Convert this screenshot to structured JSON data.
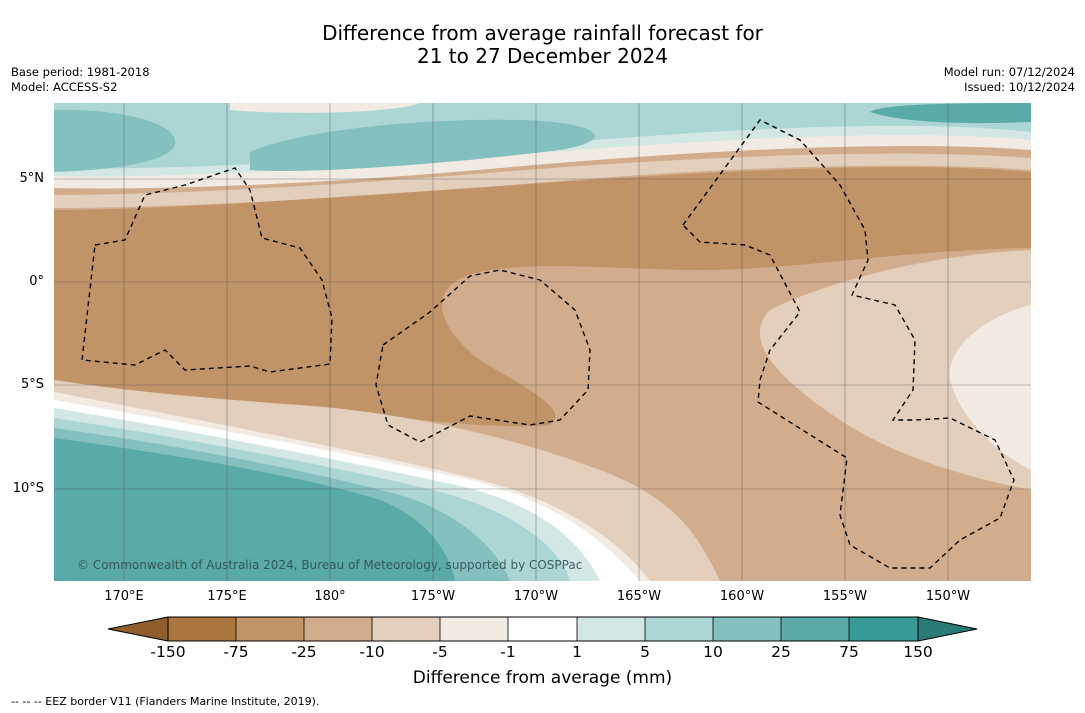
{
  "title": {
    "line1": "Difference from average rainfall forecast for",
    "line2": "21 to 27 December 2024"
  },
  "meta_left": {
    "base_period": "Base period: 1981-2018",
    "model": "Model: ACCESS-S2"
  },
  "meta_right": {
    "model_run": "Model run: 07/12/2024",
    "issued": "Issued: 10/12/2024"
  },
  "latitude_labels": [
    "5°N",
    "0°",
    "5°S",
    "10°S"
  ],
  "longitude_labels": [
    "170°E",
    "175°E",
    "180°",
    "175°W",
    "170°W",
    "165°W",
    "160°W",
    "155°W",
    "150°W"
  ],
  "copyright": "© Commonwealth of Australia 2024, Bureau of Meteorology, supported by COSPPac",
  "colorbar": {
    "ticks": [
      "-150",
      "-75",
      "-25",
      "-10",
      "-5",
      "-1",
      "1",
      "5",
      "10",
      "25",
      "75",
      "150"
    ],
    "colors": {
      "lt_-150": "#8f5e2c",
      "-150_-75": "#ab763e",
      "-75_-25": "#c19468",
      "-25_-10": "#d2ad8d",
      "-10_-5": "#e3cfbc",
      "-5_-1": "#f1ebe4",
      "-1_1": "#ffffff",
      "1_5": "#d3e7e5",
      "5_10": "#acd6d3",
      "10_25": "#83c0be",
      "25_75": "#5aaaa9",
      "75_150": "#389a96",
      "gt_150": "#2a7b78"
    },
    "title": "Difference from average (mm)"
  },
  "footnote": "--  --  -- EEZ border V11 (Flanders Marine Institute, 2019)."
}
